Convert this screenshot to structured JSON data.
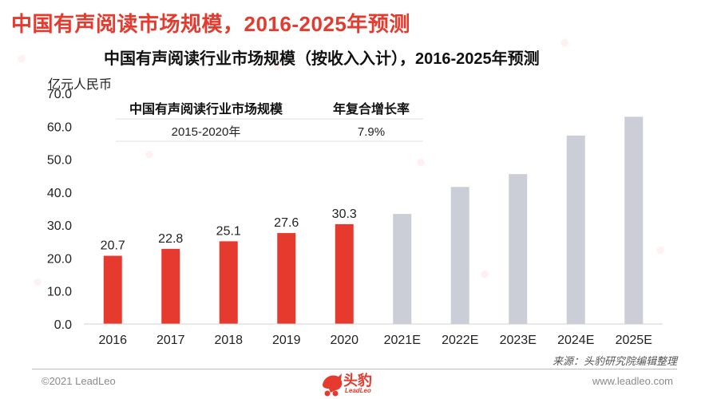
{
  "slide_title": "中国有声阅读市场规模，2016-2025年预测",
  "footer": {
    "source": "来源：头豹研究院编辑整理",
    "copyright": "©2021 LeadLeo",
    "website": "www.leadleo.com",
    "logo_text": "头豹",
    "logo_sub": "LeadLeo"
  },
  "colors": {
    "actual": "#e53a2d",
    "forecast": "#cbced6",
    "accent": "#e53a2d"
  },
  "chart_data": {
    "type": "bar",
    "title": "中国有声阅读行业市场规模（按收入入计），2016-2025年预测",
    "ylabel": "亿元人民币",
    "xlabel": "",
    "ylim": [
      0,
      70
    ],
    "yticks": [
      "0.0",
      "10.0",
      "20.0",
      "30.0",
      "40.0",
      "50.0",
      "60.0",
      "70.0"
    ],
    "categories": [
      "2016",
      "2017",
      "2018",
      "2019",
      "2020",
      "2021E",
      "2022E",
      "2023E",
      "2024E",
      "2025E"
    ],
    "values": [
      20.7,
      22.8,
      25.1,
      27.6,
      30.3,
      33.4,
      41.6,
      45.5,
      57.2,
      62.9
    ],
    "data_labels": [
      "20.7",
      "22.8",
      "25.1",
      "27.6",
      "30.3",
      "",
      "",
      "",
      "",
      ""
    ],
    "forecast_flags": [
      false,
      false,
      false,
      false,
      false,
      true,
      true,
      true,
      true,
      true
    ],
    "grid": false,
    "legend": "none",
    "cagr_table": {
      "headers": [
        "中国有声阅读行业市场规模",
        "年复合增长率"
      ],
      "rows": [
        [
          "2015-2020年",
          "7.9%"
        ]
      ]
    }
  }
}
